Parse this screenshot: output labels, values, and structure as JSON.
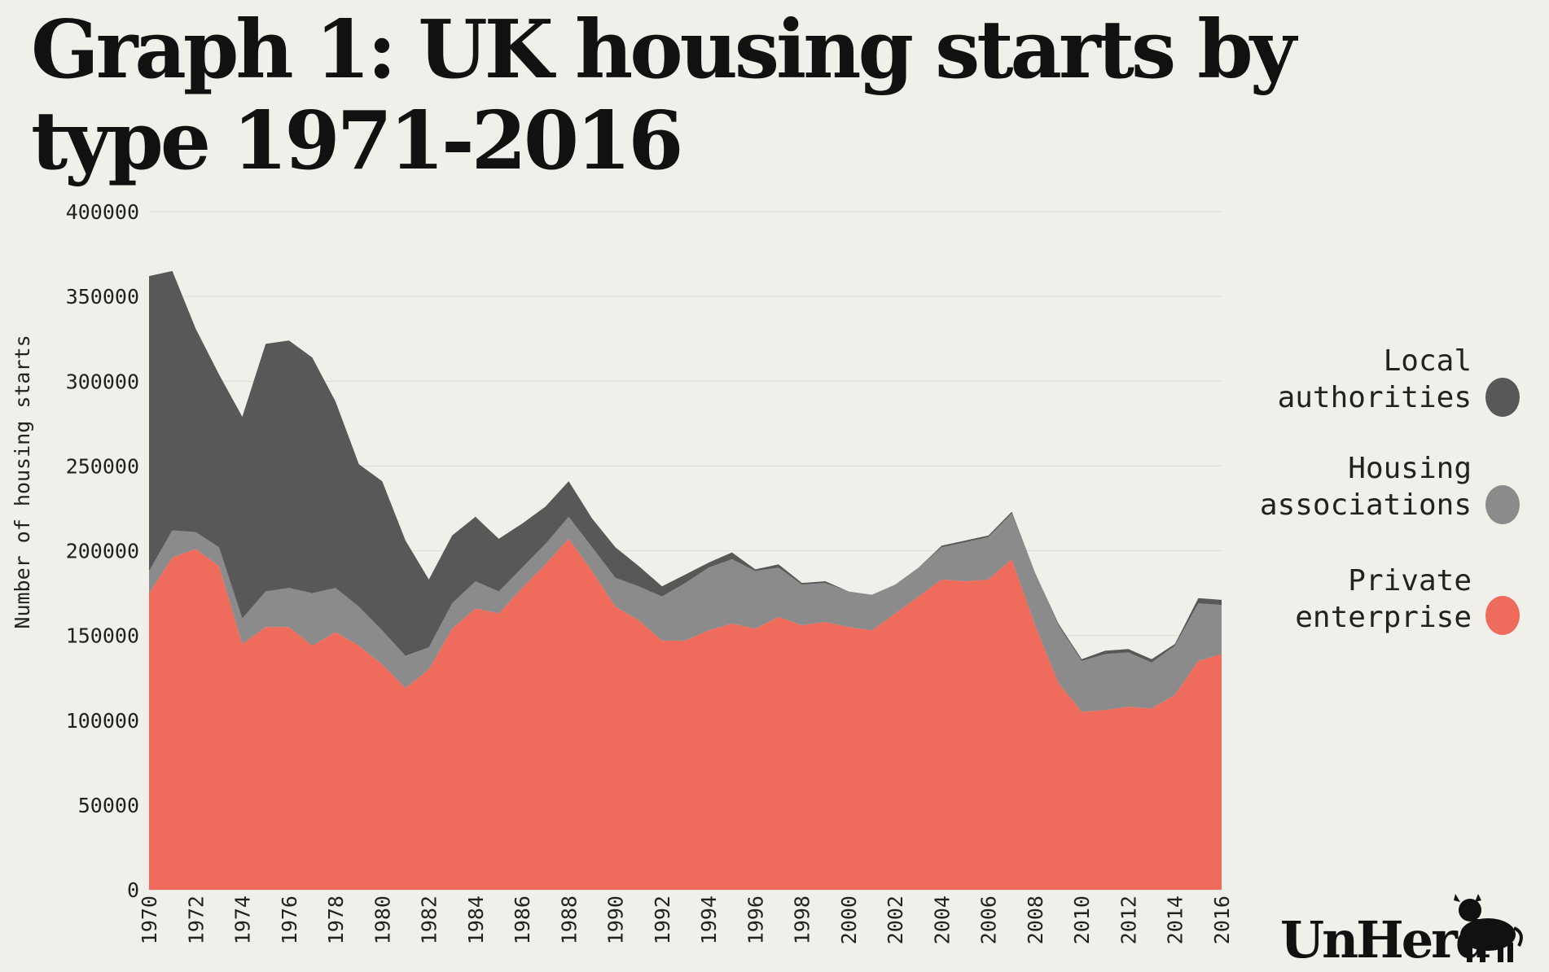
{
  "title": "Graph 1: UK housing starts by type 1971-2016",
  "brand": "UnHerd",
  "colors": {
    "background": "#f1efea",
    "private": "#ef6b5b",
    "housing": "#8b8b8b",
    "local": "#585858",
    "grid": "#dedbd5"
  },
  "chart_data": {
    "type": "area",
    "stacked": true,
    "ylabel": "Number of housing starts",
    "xlabel": "",
    "xlim": [
      1970,
      2016
    ],
    "ylim": [
      0,
      400000
    ],
    "yticks": [
      0,
      50000,
      100000,
      150000,
      200000,
      250000,
      300000,
      350000,
      400000
    ],
    "xticks": [
      1970,
      1972,
      1974,
      1976,
      1978,
      1980,
      1982,
      1984,
      1986,
      1988,
      1990,
      1992,
      1994,
      1996,
      1998,
      2000,
      2002,
      2004,
      2006,
      2008,
      2010,
      2012,
      2014,
      2016
    ],
    "grid": true,
    "legend_position": "right",
    "x": [
      1970,
      1971,
      1972,
      1973,
      1974,
      1975,
      1976,
      1977,
      1978,
      1979,
      1980,
      1981,
      1982,
      1983,
      1984,
      1985,
      1986,
      1987,
      1988,
      1989,
      1990,
      1991,
      1992,
      1993,
      1994,
      1995,
      1996,
      1997,
      1998,
      1999,
      2000,
      2001,
      2002,
      2003,
      2004,
      2005,
      2006,
      2007,
      2008,
      2009,
      2010,
      2011,
      2012,
      2013,
      2014,
      2015,
      2016
    ],
    "series": [
      {
        "name": "Private enterprise",
        "values": [
          175000,
          196000,
          201000,
          191000,
          145000,
          155000,
          155000,
          144000,
          152000,
          144000,
          133000,
          119000,
          130000,
          154000,
          166000,
          163000,
          178000,
          192000,
          207000,
          188000,
          167000,
          159000,
          147000,
          147000,
          153000,
          157000,
          154000,
          161000,
          156000,
          158000,
          155000,
          153000,
          163000,
          173000,
          183000,
          182000,
          183000,
          195000,
          156000,
          122000,
          105000,
          106000,
          108000,
          107000,
          115000,
          135000,
          139000
        ]
      },
      {
        "name": "Housing associations",
        "values": [
          13000,
          16000,
          10000,
          11000,
          15000,
          21000,
          23000,
          31000,
          26000,
          23000,
          20000,
          19000,
          13000,
          15000,
          16000,
          13000,
          12000,
          12000,
          13000,
          14000,
          17000,
          20000,
          26000,
          34000,
          37000,
          38000,
          34000,
          29000,
          24000,
          23000,
          21000,
          21000,
          17000,
          17000,
          19000,
          23000,
          25000,
          27000,
          31000,
          34000,
          30000,
          33000,
          32000,
          27000,
          29000,
          34000,
          29000
        ]
      },
      {
        "name": "Local authorities",
        "values": [
          174000,
          153000,
          120000,
          102000,
          119000,
          146000,
          146000,
          139000,
          110000,
          84000,
          88000,
          68000,
          40000,
          40000,
          38000,
          31000,
          26000,
          22000,
          21000,
          17000,
          18000,
          12000,
          6000,
          5000,
          3000,
          4000,
          1000,
          2000,
          1000,
          1000,
          0,
          0,
          0,
          0,
          1000,
          1000,
          1000,
          1000,
          0,
          1000,
          1000,
          2000,
          2000,
          2000,
          1000,
          3000,
          3000
        ]
      }
    ]
  },
  "legend": [
    {
      "line1": "Local",
      "line2": "authorities",
      "color": "#585858"
    },
    {
      "line1": "Housing",
      "line2": "associations",
      "color": "#8b8b8b"
    },
    {
      "line1": "Private",
      "line2": "enterprise",
      "color": "#ef6b5b"
    }
  ]
}
